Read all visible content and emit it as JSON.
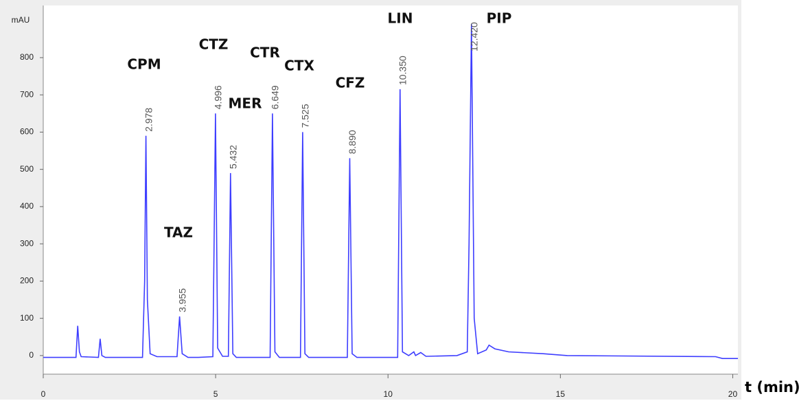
{
  "chart_data": {
    "type": "line",
    "y_label": "mAU",
    "x_label": "t (min)",
    "color": "#3d3dff",
    "xlim": [
      0,
      20.15
    ],
    "ylim": [
      -50,
      940
    ],
    "xticks": [
      0,
      5,
      10,
      15,
      20
    ],
    "yticks": [
      0,
      100,
      200,
      300,
      400,
      500,
      600,
      700,
      800
    ],
    "x": [
      0,
      0.95,
      1.0,
      1.05,
      1.1,
      1.6,
      1.65,
      1.7,
      1.8,
      2.88,
      2.94,
      2.978,
      3.02,
      3.1,
      3.3,
      3.88,
      3.955,
      4.03,
      4.2,
      4.5,
      4.92,
      4.996,
      5.06,
      5.2,
      5.37,
      5.432,
      5.5,
      5.6,
      6.58,
      6.649,
      6.72,
      6.85,
      7.46,
      7.525,
      7.59,
      7.7,
      8.82,
      8.89,
      8.96,
      9.1,
      10.28,
      10.35,
      10.42,
      10.6,
      10.75,
      10.8,
      10.95,
      11.1,
      12.0,
      12.3,
      12.35,
      12.42,
      12.5,
      12.6,
      12.85,
      12.93,
      13.1,
      13.5,
      14.5,
      15.2,
      19.5,
      19.7,
      20.15
    ],
    "values": [
      -5,
      -5,
      80,
      10,
      -3,
      -5,
      45,
      0,
      -5,
      -5,
      200,
      590,
      150,
      5,
      -3,
      -3,
      105,
      5,
      -5,
      -5,
      -3,
      650,
      20,
      -2,
      -2,
      490,
      5,
      -5,
      -5,
      650,
      10,
      -5,
      -5,
      600,
      5,
      -5,
      -5,
      530,
      5,
      -5,
      -5,
      715,
      10,
      0,
      10,
      0,
      8,
      -2,
      0,
      10,
      300,
      890,
      100,
      5,
      15,
      28,
      18,
      10,
      5,
      0,
      -3,
      -8,
      -8
    ],
    "peaks": [
      {
        "name": "CPM",
        "time": 2.978,
        "label": "2.978"
      },
      {
        "name": "TAZ",
        "time": 3.955,
        "label": "3.955"
      },
      {
        "name": "CTZ",
        "time": 4.996,
        "label": "4.996"
      },
      {
        "name": "MER",
        "time": 5.432,
        "label": "5.432"
      },
      {
        "name": "CTR",
        "time": 6.649,
        "label": "6.649"
      },
      {
        "name": "CTX",
        "time": 7.525,
        "label": "7.525"
      },
      {
        "name": "CFZ",
        "time": 8.89,
        "label": "8.890"
      },
      {
        "name": "LIN",
        "time": 10.35,
        "label": "10.350"
      },
      {
        "name": "PIP",
        "time": 12.42,
        "label": "12.420"
      }
    ]
  }
}
